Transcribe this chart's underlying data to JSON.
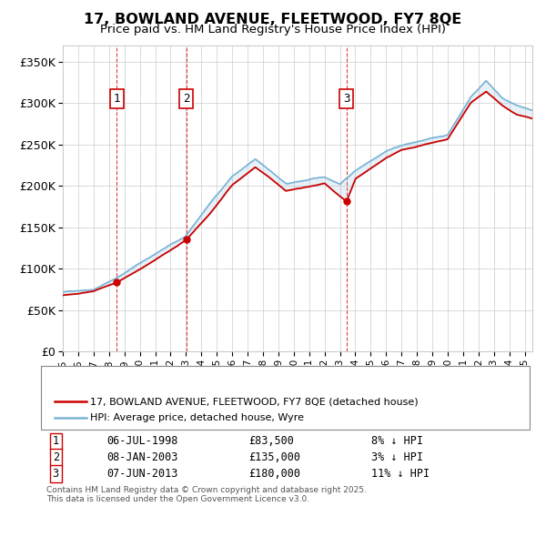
{
  "title": "17, BOWLAND AVENUE, FLEETWOOD, FY7 8QE",
  "subtitle": "Price paid vs. HM Land Registry's House Price Index (HPI)",
  "ylim": [
    0,
    370000
  ],
  "yticks": [
    0,
    50000,
    100000,
    150000,
    200000,
    250000,
    300000,
    350000
  ],
  "ytick_labels": [
    "£0",
    "£50K",
    "£100K",
    "£150K",
    "£200K",
    "£250K",
    "£300K",
    "£350K"
  ],
  "legend_line1": "17, BOWLAND AVENUE, FLEETWOOD, FY7 8QE (detached house)",
  "legend_line2": "HPI: Average price, detached house, Wyre",
  "sale_color": "#cc0000",
  "hpi_color": "#7ab3d4",
  "transactions": [
    {
      "num": 1,
      "date": "06-JUL-1998",
      "price": 83500,
      "rel": "8% ↓ HPI",
      "x": 1998.51
    },
    {
      "num": 2,
      "date": "08-JAN-2003",
      "price": 135000,
      "rel": "3% ↓ HPI",
      "x": 2003.03
    },
    {
      "num": 3,
      "date": "07-JUN-2013",
      "price": 180000,
      "rel": "11% ↓ HPI",
      "x": 2013.43
    }
  ],
  "footnote1": "Contains HM Land Registry data © Crown copyright and database right 2025.",
  "footnote2": "This data is licensed under the Open Government Licence v3.0."
}
